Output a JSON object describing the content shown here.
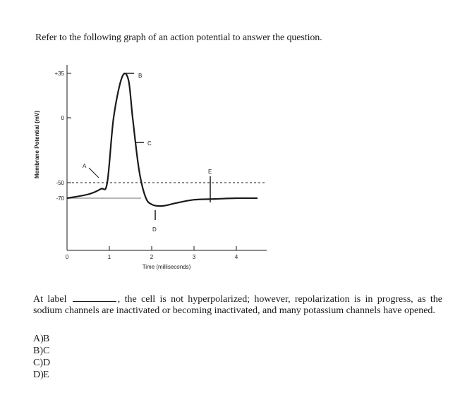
{
  "intro": "Refer to the following graph of an action potential to answer the question.",
  "chart_data": {
    "type": "line",
    "ylabel": "Membrane Potential (mV)",
    "xlabel": "Time (milliseconds)",
    "y_ticks": [
      "+35",
      "0",
      "-50",
      "-70"
    ],
    "x_ticks": [
      "0",
      "1",
      "2",
      "3",
      "4"
    ],
    "point_labels": [
      "A",
      "B",
      "C",
      "D",
      "E"
    ],
    "threshold_mV": -50,
    "resting_mV": -70,
    "series": [
      {
        "x": [
          0,
          0.5,
          0.8,
          0.95,
          1.1,
          1.3,
          1.45,
          1.55,
          1.7,
          1.85,
          2.0,
          2.25,
          2.6,
          3.0,
          3.5,
          4.0,
          4.5
        ],
        "y": [
          -70,
          -65,
          -58,
          -50,
          0,
          32,
          30,
          0,
          -40,
          -68,
          -78,
          -80,
          -76,
          -72,
          -71,
          -70,
          -70
        ]
      }
    ]
  },
  "question": {
    "prefix": "At label",
    "suffix": ", the cell is not hyperpolarized; however, repolarization is in progress, as the sodium channels are inactivated or becoming inactivated, and many potassium channels have opened."
  },
  "options": [
    {
      "letter": "A)",
      "text": "B"
    },
    {
      "letter": "B)",
      "text": "C"
    },
    {
      "letter": "C)",
      "text": "D"
    },
    {
      "letter": "D)",
      "text": "E"
    }
  ]
}
